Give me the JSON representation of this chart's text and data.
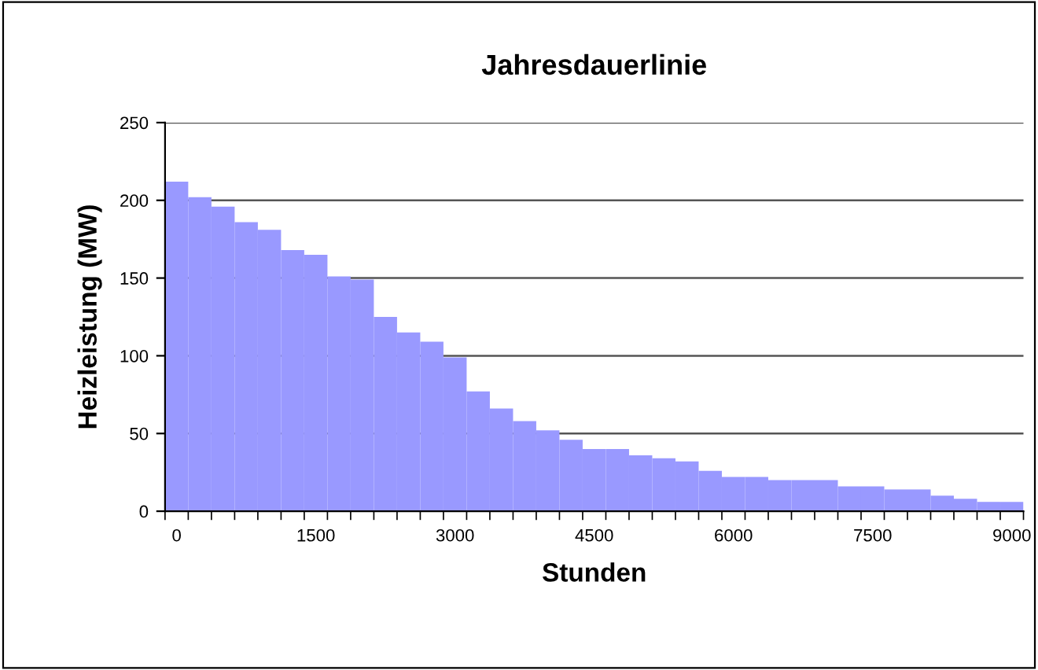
{
  "chart_data": {
    "type": "bar",
    "title": "Jahresdauerlinie",
    "xlabel": "Stunden",
    "ylabel": "Heizleistung (MW)",
    "categories": [
      "0",
      null,
      null,
      null,
      null,
      null,
      "1500",
      null,
      null,
      null,
      null,
      null,
      "3000",
      null,
      null,
      null,
      null,
      null,
      "4500",
      null,
      null,
      null,
      null,
      null,
      "6000",
      null,
      null,
      null,
      null,
      null,
      "7500",
      null,
      null,
      null,
      null,
      null,
      "9000"
    ],
    "values": [
      212,
      202,
      196,
      186,
      181,
      168,
      165,
      151,
      149,
      125,
      115,
      109,
      99,
      77,
      66,
      58,
      52,
      46,
      40,
      40,
      36,
      34,
      32,
      26,
      22,
      22,
      20,
      20,
      20,
      16,
      16,
      14,
      14,
      10,
      8,
      6,
      6
    ],
    "color": "#9999ff",
    "ylim": [
      0,
      250
    ],
    "yticks": [
      0,
      50,
      100,
      150,
      200,
      250
    ],
    "grid": "y",
    "legend": false
  }
}
